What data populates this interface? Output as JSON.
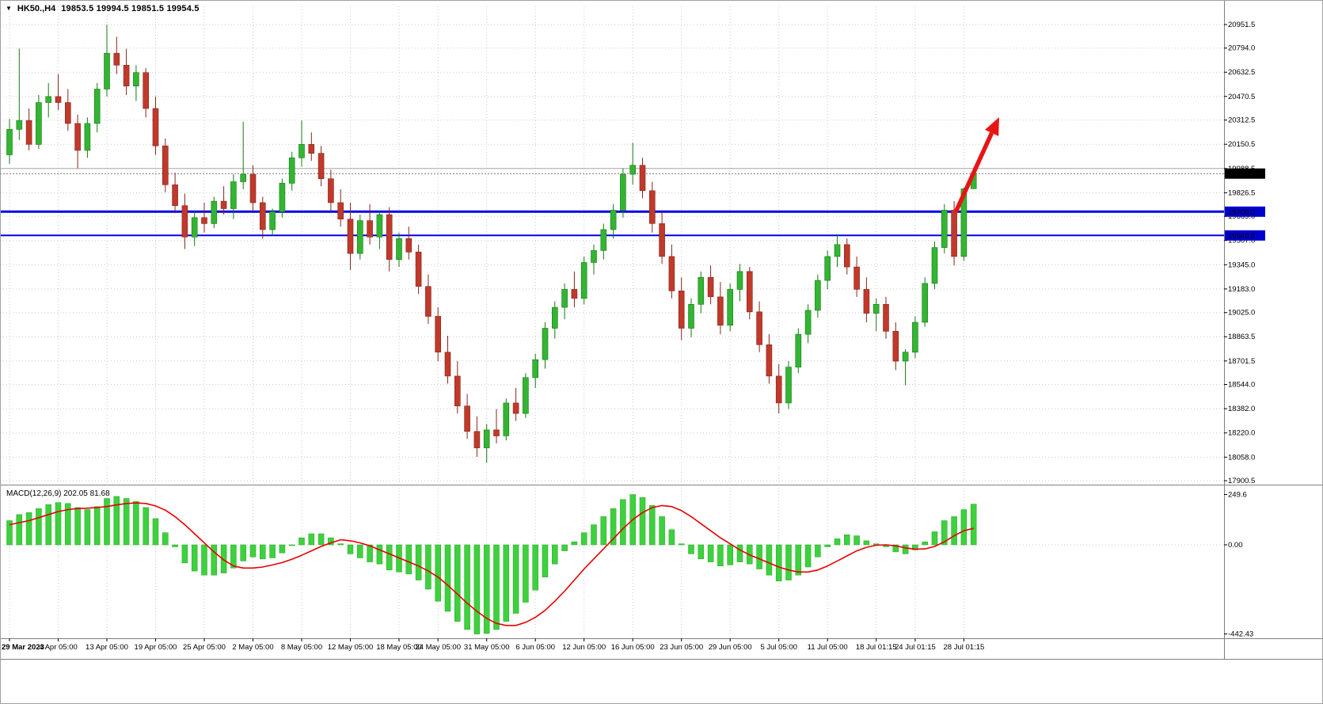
{
  "window": {
    "dropdown_icon": "▼",
    "symbol_header": "HK50.,H4",
    "ohlc_readout": "19853.5 19994.5 19851.5 19954.5"
  },
  "macd": {
    "label": "MACD(12,26,9) 202.05 81.68"
  },
  "colors": {
    "bull": "#33b533",
    "bull_border": "#157a15",
    "bear": "#c0392b",
    "bear_border": "#86261b",
    "grid": "#cbcbcb",
    "gray_line": "#a8a8a8",
    "hline": "#0000e6",
    "hline_label_bg": "#0000cc",
    "last_price_bg": "#000000",
    "last_price_line": "#777777",
    "macd_hist": "#3ed13e",
    "macd_hist_border": "#21a321",
    "macd_signal": "#e80000",
    "arrow": "#e81414",
    "pane_border": "#808080",
    "axis_text": "#000000"
  },
  "chart_data": {
    "type": "candlestick",
    "title": "HK50 H4 with MACD(12,26,9)",
    "xlabel": "",
    "ylabel": "",
    "ylim": [
      17900.5,
      20951.5
    ],
    "price_ticks": [
      "20951.5",
      "20794.0",
      "20632.5",
      "20470.5",
      "20312.5",
      "20150.5",
      "19988.5",
      "19826.5",
      "19669.0",
      "19507.0",
      "19345.0",
      "19183.0",
      "19025.0",
      "18863.5",
      "18701.5",
      "18544.0",
      "18382.0",
      "18220.0",
      "18058.0",
      "17900.5"
    ],
    "time_labels": [
      "29 Mar 2023",
      "4 Apr 05:00",
      "13 Apr 05:00",
      "19 Apr 05:00",
      "25 Apr 05:00",
      "2 May 05:00",
      "8 May 05:00",
      "12 May 05:00",
      "18 May 05:00",
      "24 May 05:00",
      "31 May 05:00",
      "6 Jun 05:00",
      "12 Jun 05:00",
      "16 Jun 05:00",
      "23 Jun 05:00",
      "29 Jun 05:00",
      "5 Jul 05:00",
      "11 Jul 05:00",
      "18 Jul 01:15",
      "24 Jul 01:15",
      "28 Jul 01:15"
    ],
    "time_label_candle_indices": [
      0,
      5,
      10,
      15,
      20,
      25,
      30,
      35,
      40,
      44,
      49,
      54,
      59,
      64,
      69,
      74,
      79,
      84,
      89,
      93,
      98
    ],
    "levels": {
      "resistance": "19700.0",
      "support": "19540.8",
      "last_price": "19954.5",
      "gray_line": "19988.5"
    },
    "ohlc": [
      [
        20080,
        20320,
        20020,
        20250
      ],
      [
        20250,
        20790,
        20180,
        20310
      ],
      [
        20310,
        20390,
        20110,
        20150
      ],
      [
        20150,
        20480,
        20120,
        20430
      ],
      [
        20430,
        20560,
        20330,
        20470
      ],
      [
        20470,
        20620,
        20380,
        20430
      ],
      [
        20430,
        20520,
        20240,
        20290
      ],
      [
        20290,
        20350,
        19990,
        20110
      ],
      [
        20110,
        20330,
        20060,
        20290
      ],
      [
        20290,
        20560,
        20230,
        20520
      ],
      [
        20520,
        20951,
        20470,
        20760
      ],
      [
        20760,
        20870,
        20620,
        20680
      ],
      [
        20680,
        20790,
        20480,
        20540
      ],
      [
        20540,
        20680,
        20440,
        20630
      ],
      [
        20630,
        20660,
        20330,
        20390
      ],
      [
        20390,
        20470,
        20080,
        20140
      ],
      [
        20140,
        20190,
        19830,
        19880
      ],
      [
        19880,
        19960,
        19690,
        19740
      ],
      [
        19740,
        19820,
        19450,
        19530
      ],
      [
        19530,
        19700,
        19470,
        19660
      ],
      [
        19660,
        19760,
        19560,
        19620
      ],
      [
        19620,
        19800,
        19590,
        19770
      ],
      [
        19770,
        19870,
        19680,
        19720
      ],
      [
        19720,
        19950,
        19650,
        19900
      ],
      [
        19900,
        20300,
        19850,
        19950
      ],
      [
        19950,
        20010,
        19700,
        19760
      ],
      [
        19760,
        19800,
        19520,
        19580
      ],
      [
        19580,
        19720,
        19540,
        19700
      ],
      [
        19700,
        19920,
        19660,
        19890
      ],
      [
        19890,
        20100,
        19840,
        20060
      ],
      [
        20060,
        20310,
        20000,
        20150
      ],
      [
        20150,
        20230,
        20040,
        20090
      ],
      [
        20090,
        20140,
        19870,
        19920
      ],
      [
        19920,
        19980,
        19700,
        19760
      ],
      [
        19760,
        19850,
        19600,
        19650
      ],
      [
        19650,
        19760,
        19310,
        19420
      ],
      [
        19420,
        19680,
        19380,
        19640
      ],
      [
        19640,
        19750,
        19480,
        19530
      ],
      [
        19530,
        19700,
        19450,
        19680
      ],
      [
        19680,
        19730,
        19300,
        19380
      ],
      [
        19380,
        19560,
        19330,
        19520
      ],
      [
        19520,
        19600,
        19380,
        19430
      ],
      [
        19430,
        19480,
        19150,
        19200
      ],
      [
        19200,
        19280,
        18950,
        19000
      ],
      [
        19000,
        19060,
        18700,
        18760
      ],
      [
        18760,
        18870,
        18550,
        18600
      ],
      [
        18600,
        18700,
        18350,
        18400
      ],
      [
        18400,
        18480,
        18180,
        18230
      ],
      [
        18230,
        18330,
        18060,
        18120
      ],
      [
        18120,
        18280,
        18020,
        18240
      ],
      [
        18240,
        18380,
        18150,
        18200
      ],
      [
        18200,
        18450,
        18170,
        18420
      ],
      [
        18420,
        18520,
        18300,
        18350
      ],
      [
        18350,
        18620,
        18320,
        18590
      ],
      [
        18590,
        18750,
        18520,
        18710
      ],
      [
        18710,
        18960,
        18650,
        18920
      ],
      [
        18920,
        19100,
        18850,
        19060
      ],
      [
        19060,
        19220,
        18980,
        19180
      ],
      [
        19180,
        19300,
        19060,
        19120
      ],
      [
        19120,
        19400,
        19080,
        19360
      ],
      [
        19360,
        19480,
        19280,
        19440
      ],
      [
        19440,
        19620,
        19380,
        19580
      ],
      [
        19580,
        19750,
        19520,
        19710
      ],
      [
        19710,
        19990,
        19660,
        19950
      ],
      [
        19950,
        20160,
        19880,
        20010
      ],
      [
        20010,
        20060,
        19790,
        19840
      ],
      [
        19840,
        19900,
        19560,
        19620
      ],
      [
        19620,
        19700,
        19350,
        19400
      ],
      [
        19400,
        19480,
        19120,
        19170
      ],
      [
        19170,
        19260,
        18840,
        18920
      ],
      [
        18920,
        19120,
        18860,
        19080
      ],
      [
        19080,
        19300,
        19020,
        19260
      ],
      [
        19260,
        19340,
        19080,
        19130
      ],
      [
        19130,
        19230,
        18880,
        18940
      ],
      [
        18940,
        19220,
        18900,
        19180
      ],
      [
        19180,
        19350,
        19100,
        19300
      ],
      [
        19300,
        19330,
        18980,
        19030
      ],
      [
        19030,
        19100,
        18760,
        18810
      ],
      [
        18810,
        18880,
        18550,
        18600
      ],
      [
        18600,
        18680,
        18350,
        18420
      ],
      [
        18420,
        18700,
        18380,
        18660
      ],
      [
        18660,
        18920,
        18620,
        18880
      ],
      [
        18880,
        19080,
        18820,
        19040
      ],
      [
        19040,
        19280,
        18990,
        19240
      ],
      [
        19240,
        19440,
        19180,
        19400
      ],
      [
        19400,
        19550,
        19330,
        19480
      ],
      [
        19480,
        19520,
        19280,
        19330
      ],
      [
        19330,
        19400,
        19130,
        19180
      ],
      [
        19180,
        19260,
        18960,
        19020
      ],
      [
        19020,
        19120,
        18900,
        19080
      ],
      [
        19080,
        19130,
        18850,
        18900
      ],
      [
        18900,
        18960,
        18640,
        18700
      ],
      [
        18700,
        18780,
        18540,
        18760
      ],
      [
        18760,
        19000,
        18720,
        18960
      ],
      [
        18960,
        19260,
        18930,
        19220
      ],
      [
        19220,
        19500,
        19180,
        19460
      ],
      [
        19460,
        19750,
        19420,
        19710
      ],
      [
        19710,
        19770,
        19340,
        19400
      ],
      [
        19400,
        19860,
        19370,
        19853
      ],
      [
        19853.5,
        19994.5,
        19851.5,
        19954.5
      ]
    ],
    "macd": {
      "value": 202.05,
      "signal_value": 81.68,
      "ylim": [
        -442.43,
        249.6
      ],
      "ticks": [
        "249.6",
        "0.00",
        "-442.43"
      ],
      "histogram": [
        120,
        150,
        160,
        180,
        200,
        210,
        205,
        185,
        175,
        190,
        230,
        240,
        230,
        215,
        185,
        130,
        60,
        -10,
        -90,
        -130,
        -150,
        -150,
        -140,
        -115,
        -80,
        -60,
        -70,
        -65,
        -40,
        0,
        35,
        55,
        55,
        35,
        5,
        -45,
        -65,
        -85,
        -95,
        -125,
        -135,
        -145,
        -175,
        -220,
        -280,
        -330,
        -380,
        -420,
        -442.43,
        -440,
        -420,
        -380,
        -340,
        -285,
        -225,
        -160,
        -95,
        -30,
        15,
        60,
        100,
        140,
        180,
        225,
        249.6,
        235,
        195,
        140,
        75,
        5,
        -45,
        -70,
        -85,
        -105,
        -100,
        -85,
        -95,
        -120,
        -150,
        -180,
        -175,
        -150,
        -110,
        -60,
        -10,
        30,
        50,
        45,
        20,
        5,
        -10,
        -35,
        -45,
        -25,
        15,
        65,
        120,
        140,
        175,
        202.05
      ],
      "signal": [
        100,
        110,
        120,
        135,
        150,
        165,
        175,
        180,
        182,
        185,
        190,
        198,
        205,
        208,
        205,
        193,
        172,
        140,
        100,
        55,
        10,
        -35,
        -75,
        -105,
        -115,
        -115,
        -110,
        -100,
        -88,
        -72,
        -52,
        -30,
        -8,
        10,
        25,
        20,
        10,
        -5,
        -25,
        -45,
        -65,
        -85,
        -105,
        -130,
        -160,
        -200,
        -245,
        -290,
        -330,
        -365,
        -390,
        -400,
        -400,
        -385,
        -360,
        -325,
        -280,
        -230,
        -175,
        -120,
        -70,
        -20,
        30,
        80,
        125,
        160,
        185,
        195,
        190,
        170,
        140,
        105,
        70,
        35,
        5,
        -25,
        -50,
        -70,
        -90,
        -110,
        -125,
        -135,
        -135,
        -125,
        -105,
        -80,
        -55,
        -30,
        -12,
        -2,
        0,
        -5,
        -15,
        -22,
        -20,
        -8,
        15,
        45,
        70,
        81.68
      ]
    },
    "annotations": [
      {
        "type": "arrow",
        "color": "#e81414",
        "desc": "red up-right trend arrow near the last candles pointing toward higher prices"
      }
    ]
  }
}
